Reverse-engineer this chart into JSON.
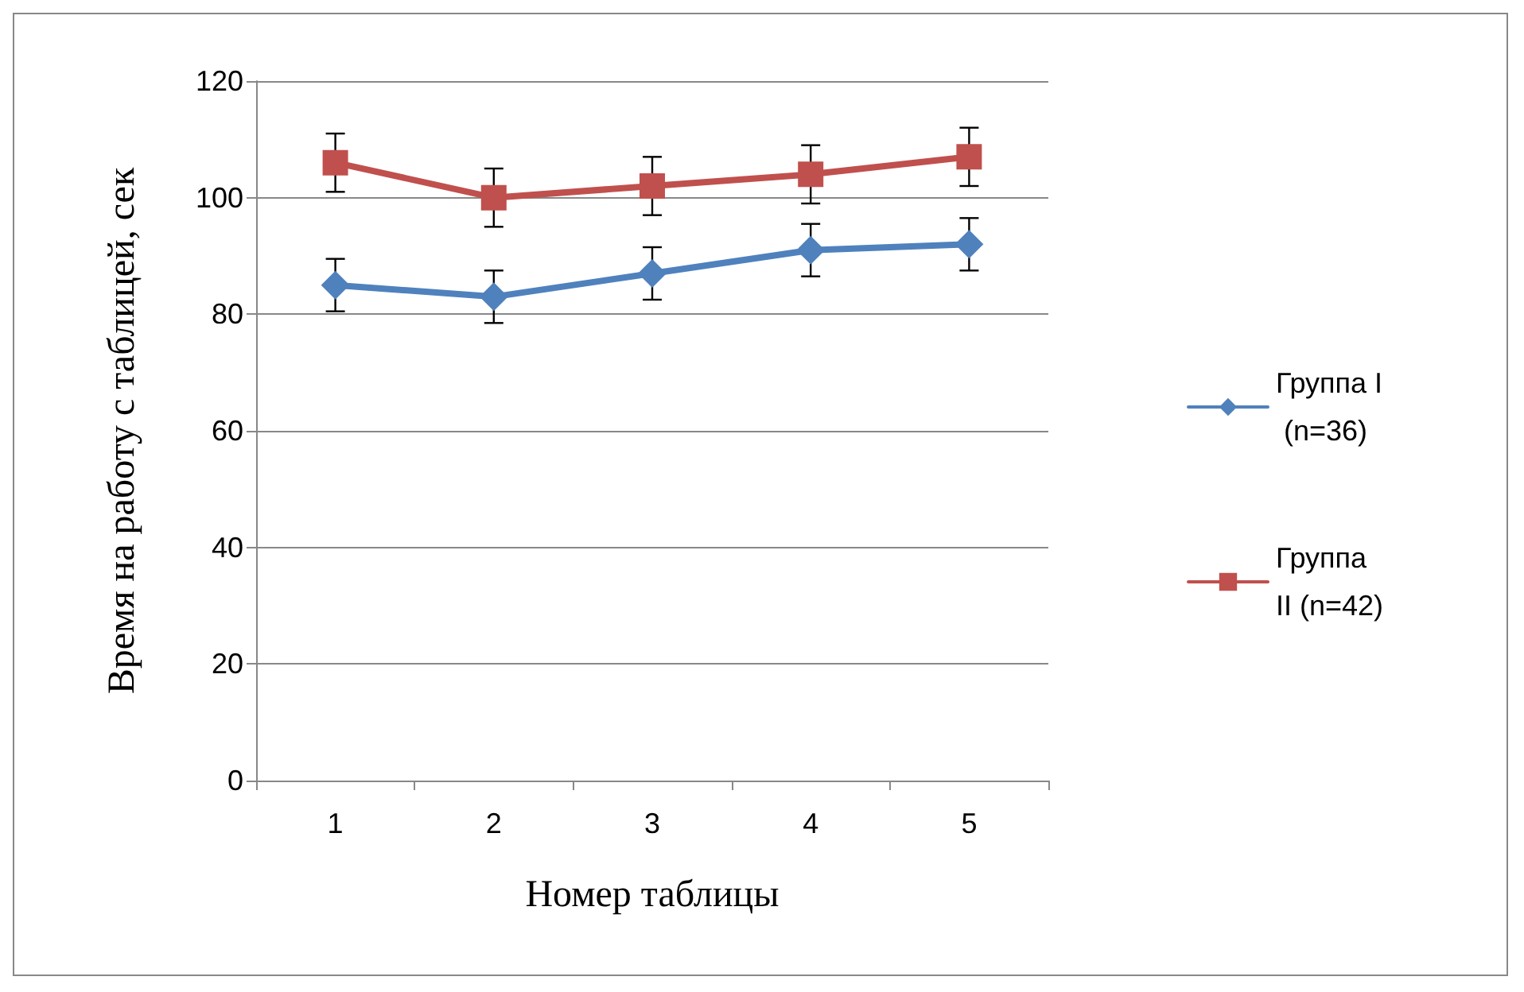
{
  "chart_data": {
    "type": "line",
    "xlabel": "Номер таблицы",
    "ylabel": "Время на работу с таблицей, сек",
    "categories": [
      "1",
      "2",
      "3",
      "4",
      "5"
    ],
    "series": [
      {
        "name": "Группа I (n=36)",
        "color": "#4f81bd",
        "marker": "diamond",
        "values": [
          85,
          83,
          87,
          91,
          92
        ],
        "errors": [
          4.5,
          4.5,
          4.5,
          4.5,
          4.5
        ]
      },
      {
        "name": "Группа II (n=42)",
        "color": "#c0504d",
        "marker": "square",
        "values": [
          106,
          100,
          102,
          104,
          107
        ],
        "errors": [
          5,
          5,
          5,
          5,
          5
        ]
      }
    ],
    "ylim": [
      0,
      120
    ],
    "yticks": [
      0,
      20,
      40,
      60,
      80,
      100,
      120
    ],
    "grid": "y",
    "legend": "right",
    "line_style": "solid"
  }
}
